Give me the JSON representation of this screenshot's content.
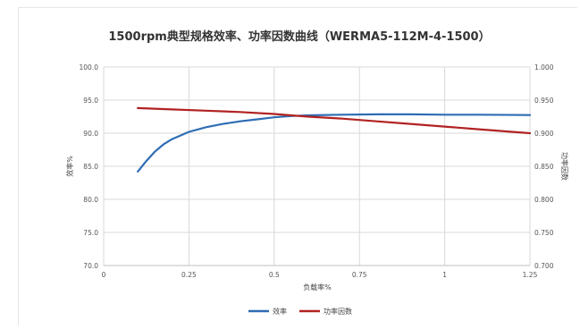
{
  "chart_data": {
    "type": "line",
    "title": "1500rpm典型规格效率、功率因数曲线（WERMA5-112M-4-1500）",
    "xlabel": "负载率%",
    "ylabel": "效率%",
    "y2label": "功率因数",
    "xlim": [
      0,
      1.25
    ],
    "ylim": [
      70.0,
      100.0
    ],
    "y2lim": [
      0.7,
      1.0
    ],
    "xticks": [
      0,
      0.25,
      0.5,
      0.75,
      1,
      1.25
    ],
    "xtick_labels": [
      "0",
      "0.25",
      "0.5",
      "0.75",
      "1",
      "1.25"
    ],
    "yticks": [
      70,
      75,
      80,
      85,
      90,
      95,
      100
    ],
    "ytick_labels": [
      "70.0",
      "75.0",
      "80.0",
      "85.0",
      "90.0",
      "95.0",
      "100.0"
    ],
    "y2ticks": [
      0.7,
      0.75,
      0.8,
      0.85,
      0.9,
      0.95,
      1.0
    ],
    "y2tick_labels": [
      "0.700",
      "0.750",
      "0.800",
      "0.850",
      "0.900",
      "0.950",
      "1.000"
    ],
    "grid": true,
    "legend_position": "bottom",
    "series": [
      {
        "name": "效率",
        "axis": "left",
        "color": "#2e6db4",
        "x": [
          0.1,
          0.125,
          0.15,
          0.175,
          0.2,
          0.25,
          0.3,
          0.35,
          0.4,
          0.45,
          0.5,
          0.55,
          0.6,
          0.7,
          0.8,
          0.9,
          1.0,
          1.1,
          1.25
        ],
        "y": [
          84.2,
          85.8,
          87.2,
          88.3,
          89.1,
          90.2,
          90.9,
          91.4,
          91.8,
          92.1,
          92.4,
          92.6,
          92.7,
          92.8,
          92.85,
          92.85,
          92.8,
          92.8,
          92.75
        ]
      },
      {
        "name": "功率因数",
        "axis": "right",
        "color": "#b22222",
        "x": [
          0.1,
          0.2,
          0.3,
          0.4,
          0.5,
          0.6,
          0.7,
          0.8,
          0.9,
          1.0,
          1.1,
          1.25
        ],
        "y": [
          0.938,
          0.936,
          0.934,
          0.932,
          0.929,
          0.925,
          0.922,
          0.918,
          0.914,
          0.91,
          0.906,
          0.9
        ]
      }
    ]
  }
}
